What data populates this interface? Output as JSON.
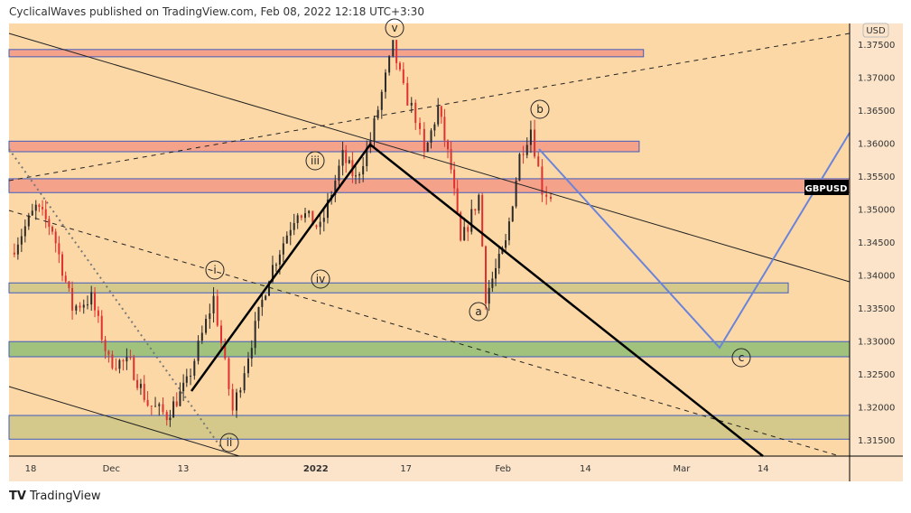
{
  "header": "CyclicalWaves published on TradingView.com, Feb 08, 2022 12:18 UTC+3:30",
  "footer": {
    "logo": "TradingView"
  },
  "colors": {
    "bg": "#fcd8a7",
    "axis_bg": "#fbe4c9",
    "up": "#2a2a2a",
    "down": "#e03030",
    "red_zone": "#f4a38a",
    "olive_zone": "#d4c98a",
    "green_zone": "#a0c27c",
    "zone_border": "#3f5bbf",
    "projection": "#6b84d9"
  },
  "chart_data": {
    "type": "candlestick",
    "symbol": "GBPUSD",
    "currency": "USD",
    "ylim": [
      1.3125,
      1.378
    ],
    "y_ticks": [
      "1.37500",
      "1.37000",
      "1.36500",
      "1.36000",
      "1.35500",
      "1.35000",
      "1.34500",
      "1.34000",
      "1.33500",
      "1.33000",
      "1.32500",
      "1.32000",
      "1.31500"
    ],
    "y_tick_values": [
      1.375,
      1.37,
      1.365,
      1.36,
      1.355,
      1.35,
      1.345,
      1.34,
      1.335,
      1.33,
      1.325,
      1.32,
      1.315
    ],
    "x_ticks": [
      {
        "label": "18",
        "t": 2.5
      },
      {
        "label": "Dec",
        "t": 11.8
      },
      {
        "label": "13",
        "t": 20.1
      },
      {
        "label": "2022",
        "t": 35.4
      },
      {
        "label": "17",
        "t": 45.8
      },
      {
        "label": "Feb",
        "t": 57
      },
      {
        "label": "14",
        "t": 66.5
      },
      {
        "label": "Mar",
        "t": 77.6
      },
      {
        "label": "14",
        "t": 87
      }
    ],
    "price_path": [
      [
        0.2,
        1.3434
      ],
      [
        3.1,
        1.3502
      ],
      [
        5,
        1.347
      ],
      [
        7.3,
        1.335
      ],
      [
        9.5,
        1.3365
      ],
      [
        11.5,
        1.327
      ],
      [
        14,
        1.3265
      ],
      [
        16,
        1.3205
      ],
      [
        18.2,
        1.3187
      ],
      [
        20.5,
        1.3235
      ],
      [
        23.6,
        1.3365
      ],
      [
        25.8,
        1.3194
      ],
      [
        27.6,
        1.328
      ],
      [
        30,
        1.34
      ],
      [
        33.3,
        1.35
      ],
      [
        35.9,
        1.347
      ],
      [
        38.5,
        1.358
      ],
      [
        40,
        1.3545
      ],
      [
        41.7,
        1.3605
      ],
      [
        44.3,
        1.3746
      ],
      [
        45.5,
        1.368
      ],
      [
        46.9,
        1.364
      ],
      [
        47.9,
        1.358
      ],
      [
        49.5,
        1.3653
      ],
      [
        51,
        1.356
      ],
      [
        52.1,
        1.3447
      ],
      [
        54.2,
        1.352
      ],
      [
        55,
        1.3368
      ],
      [
        57.3,
        1.3447
      ],
      [
        58.9,
        1.358
      ],
      [
        60.2,
        1.3623
      ],
      [
        61.5,
        1.353
      ],
      [
        62.5,
        1.352
      ]
    ],
    "zones": [
      {
        "type": "red",
        "top": 1.3742,
        "bottom": 1.3731,
        "t_end": 73.2
      },
      {
        "type": "red",
        "top": 1.3603,
        "bottom": 1.3587,
        "t_end": 72.7
      },
      {
        "type": "red",
        "top": 1.3546,
        "bottom": 1.3525,
        "t_end": null
      },
      {
        "type": "olive",
        "top": 1.3388,
        "bottom": 1.3373,
        "t_end": 89.9
      },
      {
        "type": "green",
        "top": 1.3299,
        "bottom": 1.3276,
        "t_end": null
      },
      {
        "type": "olive",
        "top": 1.3187,
        "bottom": 1.3151,
        "t_end": null
      }
    ],
    "wave_labels": [
      "v",
      "b",
      "iii",
      "i",
      "iv",
      "a",
      "c",
      "ii"
    ]
  }
}
